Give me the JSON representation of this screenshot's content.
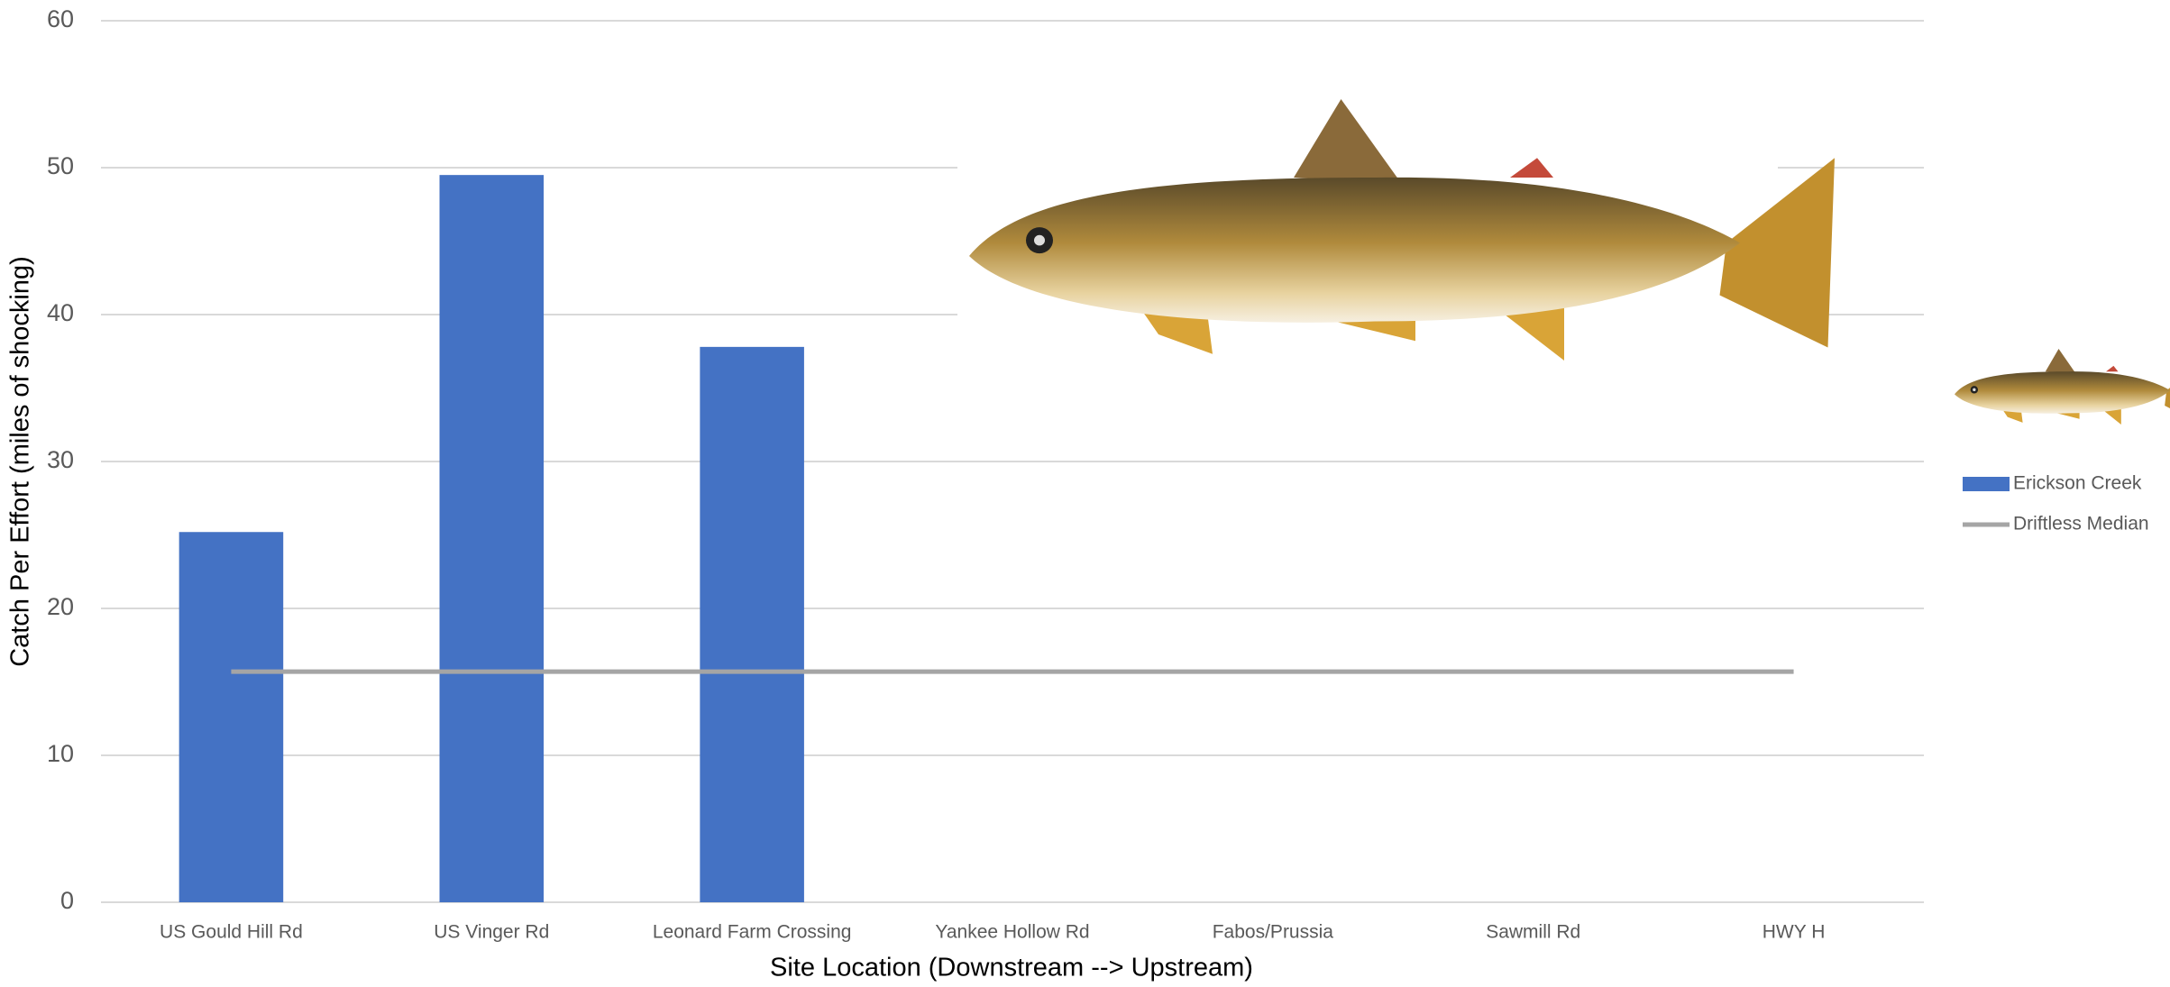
{
  "chart_data": {
    "type": "bar",
    "x_label": "Site Location (Downstream --> Upstream)",
    "y_label": "Catch Per Effort (miles of shocking)",
    "categories": [
      "US Gould Hill Rd",
      "US Vinger Rd",
      "Leonard Farm Crossing",
      "Yankee Hollow Rd",
      "Fabos/Prussia",
      "Sawmill Rd",
      "HWY H"
    ],
    "series": [
      {
        "name": "Erickson Creek",
        "type": "bar",
        "color": "#4472c4",
        "values": [
          25.2,
          49.5,
          37.8,
          null,
          null,
          null,
          null
        ]
      },
      {
        "name": "Driftless Median",
        "type": "line",
        "color": "#a5a5a5",
        "values": [
          15.7,
          15.7,
          15.7,
          15.7,
          15.7,
          15.7,
          15.7
        ]
      }
    ],
    "ylim": [
      0,
      60
    ],
    "yticks": [
      0,
      10,
      20,
      30,
      40,
      50,
      60
    ],
    "grid": true,
    "legend": "right"
  }
}
